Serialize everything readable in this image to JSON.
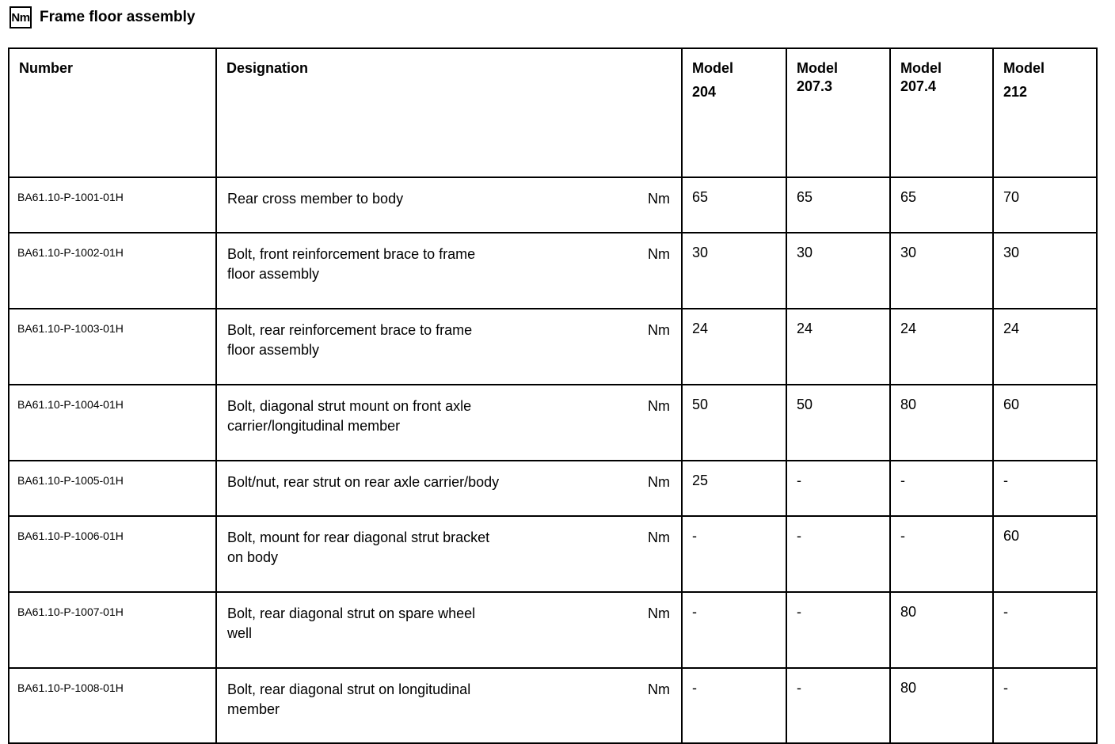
{
  "page": {
    "icon_label": "Nm",
    "title": "Frame floor assembly"
  },
  "table": {
    "headers": {
      "number": "Number",
      "designation": "Designation",
      "models": [
        {
          "line1": "Model",
          "line2": "204"
        },
        {
          "line1": "Model",
          "line2": "207.3"
        },
        {
          "line1": "Model",
          "line2": "207.4"
        },
        {
          "line1": "Model",
          "line2": "212"
        }
      ]
    },
    "rows": [
      {
        "number": "BA61.10-P-1001-01H",
        "designation": "Rear cross member to body",
        "unit": "Nm",
        "values": {
          "m204": "65",
          "m207_3": "65",
          "m207_4": "65",
          "m212": "70"
        }
      },
      {
        "number": "BA61.10-P-1002-01H",
        "designation": "Bolt, front reinforcement brace to frame\nfloor assembly",
        "unit": "Nm",
        "values": {
          "m204": "30",
          "m207_3": "30",
          "m207_4": "30",
          "m212": "30"
        }
      },
      {
        "number": "BA61.10-P-1003-01H",
        "designation": "Bolt, rear reinforcement brace to frame\nfloor assembly",
        "unit": "Nm",
        "values": {
          "m204": "24",
          "m207_3": "24",
          "m207_4": "24",
          "m212": "24"
        }
      },
      {
        "number": "BA61.10-P-1004-01H",
        "designation": "Bolt, diagonal strut mount on front axle\ncarrier/longitudinal member",
        "unit": "Nm",
        "values": {
          "m204": "50",
          "m207_3": "50",
          "m207_4": "80",
          "m212": "60"
        }
      },
      {
        "number": "BA61.10-P-1005-01H",
        "designation": "Bolt/nut, rear strut on rear axle carrier/body",
        "unit": "Nm",
        "values": {
          "m204": "25",
          "m207_3": "-",
          "m207_4": "-",
          "m212": "-"
        }
      },
      {
        "number": "BA61.10-P-1006-01H",
        "designation": "Bolt, mount for rear diagonal strut bracket\non body",
        "unit": "Nm",
        "values": {
          "m204": "-",
          "m207_3": "-",
          "m207_4": "-",
          "m212": "60"
        }
      },
      {
        "number": "BA61.10-P-1007-01H",
        "designation": "Bolt, rear diagonal strut on spare wheel\nwell",
        "unit": "Nm",
        "values": {
          "m204": "-",
          "m207_3": "-",
          "m207_4": "80",
          "m212": "-"
        }
      },
      {
        "number": "BA61.10-P-1008-01H",
        "designation": "Bolt, rear diagonal strut on longitudinal\nmember",
        "unit": "Nm",
        "values": {
          "m204": "-",
          "m207_3": "-",
          "m207_4": "80",
          "m212": "-"
        }
      }
    ]
  }
}
